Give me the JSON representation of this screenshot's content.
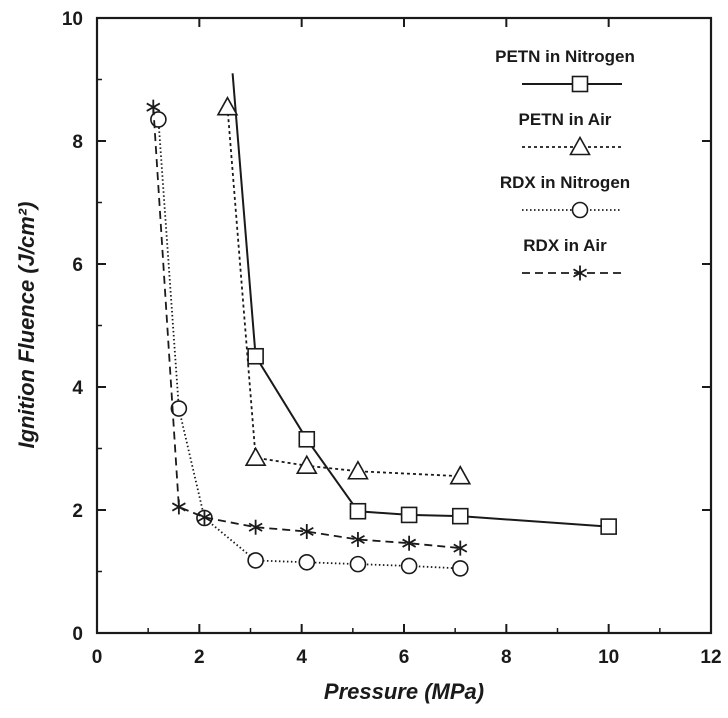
{
  "chart_data": {
    "type": "line",
    "xlabel": "Pressure (MPa)",
    "ylabel": "Ignition Fluence (J/cm²)",
    "xlim": [
      0,
      12
    ],
    "ylim": [
      0,
      10
    ],
    "xticks": [
      0,
      2,
      4,
      6,
      8,
      10,
      12
    ],
    "yticks": [
      0,
      2,
      4,
      6,
      8,
      10
    ],
    "grid": false,
    "legend_position": "top-right",
    "series": [
      {
        "name": "PETN in Nitrogen",
        "marker": "square",
        "line_style": "solid",
        "color": "#1a1a1a",
        "points": [
          [
            2.65,
            9.1
          ],
          [
            3.1,
            4.5
          ],
          [
            4.1,
            3.15
          ],
          [
            5.1,
            1.98
          ],
          [
            6.1,
            1.92
          ],
          [
            7.1,
            1.9
          ],
          [
            10.0,
            1.73
          ]
        ],
        "marked": [
          false,
          true,
          true,
          true,
          true,
          true,
          true
        ]
      },
      {
        "name": "PETN in Air",
        "marker": "triangle",
        "line_style": "dotted",
        "color": "#1a1a1a",
        "points": [
          [
            2.55,
            8.55
          ],
          [
            3.1,
            2.85
          ],
          [
            4.1,
            2.72
          ],
          [
            5.1,
            2.63
          ],
          [
            7.1,
            2.55
          ]
        ],
        "marked": [
          true,
          true,
          true,
          true,
          true
        ]
      },
      {
        "name": "RDX in Nitrogen",
        "marker": "circle",
        "line_style": "dotted-fine",
        "color": "#1a1a1a",
        "points": [
          [
            1.2,
            8.35
          ],
          [
            1.6,
            3.65
          ],
          [
            2.1,
            1.87
          ],
          [
            3.1,
            1.18
          ],
          [
            4.1,
            1.15
          ],
          [
            5.1,
            1.12
          ],
          [
            6.1,
            1.09
          ],
          [
            7.1,
            1.05
          ]
        ],
        "marked": [
          true,
          true,
          true,
          true,
          true,
          true,
          true,
          true
        ]
      },
      {
        "name": "RDX in Air",
        "marker": "star",
        "line_style": "dashed",
        "color": "#1a1a1a",
        "points": [
          [
            1.1,
            8.55
          ],
          [
            1.6,
            2.05
          ],
          [
            2.1,
            1.88
          ],
          [
            3.1,
            1.72
          ],
          [
            4.1,
            1.65
          ],
          [
            5.1,
            1.52
          ],
          [
            6.1,
            1.46
          ],
          [
            7.1,
            1.38
          ]
        ],
        "marked": [
          true,
          true,
          true,
          true,
          true,
          true,
          true,
          true
        ]
      }
    ]
  }
}
